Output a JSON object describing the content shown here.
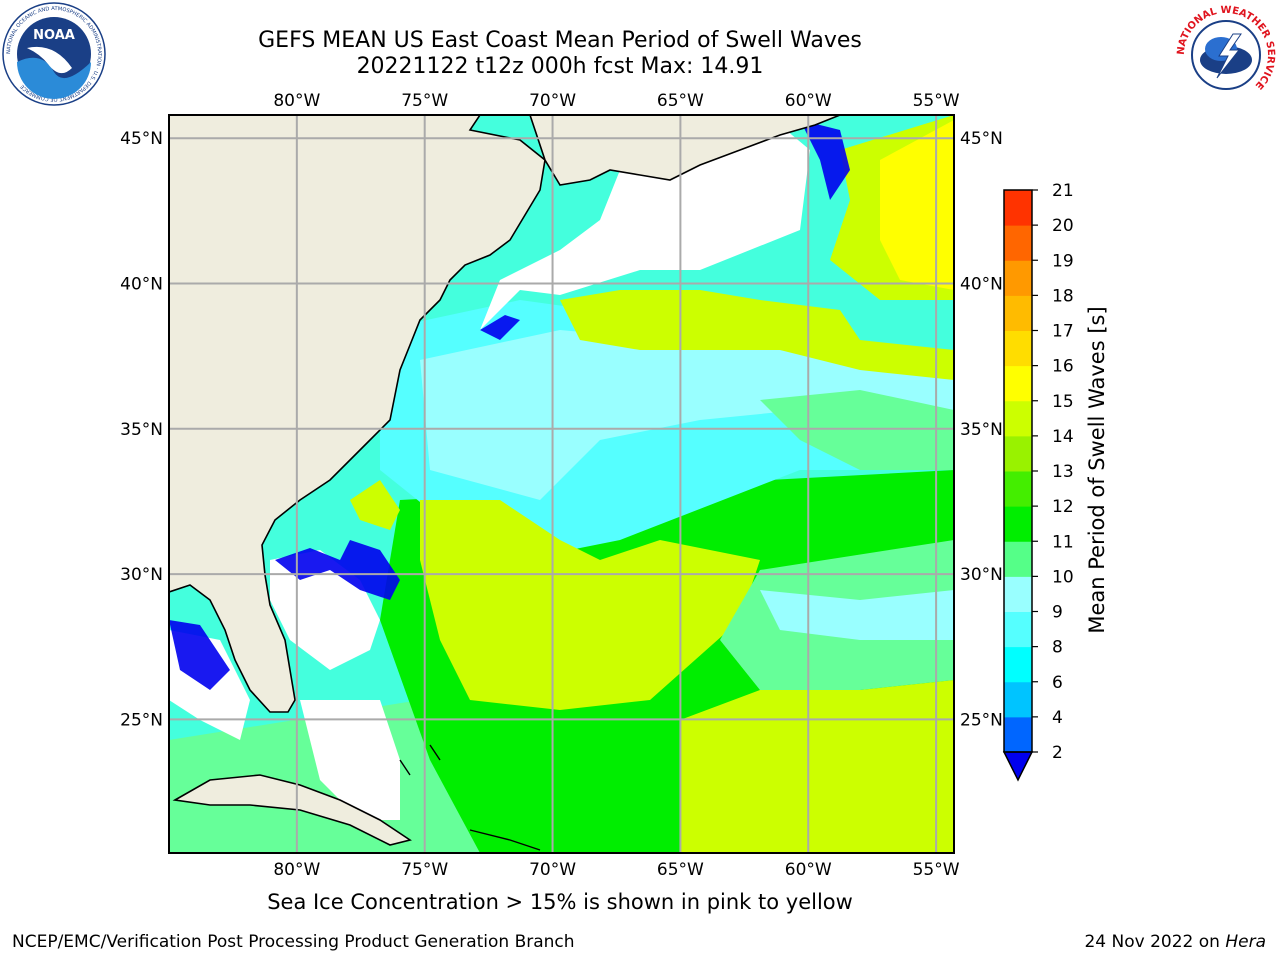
{
  "header": {
    "title_line1": "GEFS MEAN US East Coast Mean Period of Swell Waves",
    "title_line2": "20221122 t12z 000h fcst   Max: 14.91"
  },
  "logos": {
    "noaa": {
      "text": "NOAA",
      "ring_text": "NATIONAL OCEANIC AND ATMOSPHERIC ADMINISTRATION · U.S. DEPARTMENT OF COMMERCE"
    },
    "nws": {
      "ring_text": "NATIONAL WEATHER SERVICE"
    }
  },
  "map": {
    "lon_range": [
      -85,
      -54.3
    ],
    "lat_range": [
      20.4,
      45.8
    ],
    "lon_ticks": [
      -80,
      -75,
      -70,
      -65,
      -60,
      -55
    ],
    "lat_ticks": [
      25,
      30,
      35,
      40,
      45
    ],
    "lon_labels": [
      "80°W",
      "75°W",
      "70°W",
      "65°W",
      "60°W",
      "55°W"
    ],
    "lat_labels": [
      "25°N",
      "30°N",
      "35°N",
      "40°N",
      "45°N"
    ],
    "colors": {
      "land": "#efedde",
      "grid": "#aaaaaa",
      "coast": "#000000"
    },
    "no_data_color": "#ffffff"
  },
  "colorbar": {
    "label": "Mean Period of Swell Waves [s]",
    "levels": [
      "2",
      "4",
      "6",
      "8",
      "9",
      "10",
      "11",
      "12",
      "13",
      "14",
      "15",
      "16",
      "17",
      "18",
      "19",
      "20",
      "21"
    ],
    "colors": [
      "#0066ff",
      "#00c4ff",
      "#00ffff",
      "#55ffff",
      "#99ffff",
      "#55ff88",
      "#00ee00",
      "#44ee00",
      "#99f200",
      "#ccff00",
      "#ffff00",
      "#ffdd00",
      "#ffbb00",
      "#ff9900",
      "#ff6600",
      "#ff3300"
    ],
    "under_color": "#0000ee"
  },
  "captions": {
    "sea_ice_note": "Sea Ice Concentration > 15% is shown in pink to yellow",
    "footer_left": "NCEP/EMC/Verification Post Processing Product Generation Branch",
    "footer_right_date": "24 Nov 2022 on ",
    "footer_right_host": "Hera"
  }
}
